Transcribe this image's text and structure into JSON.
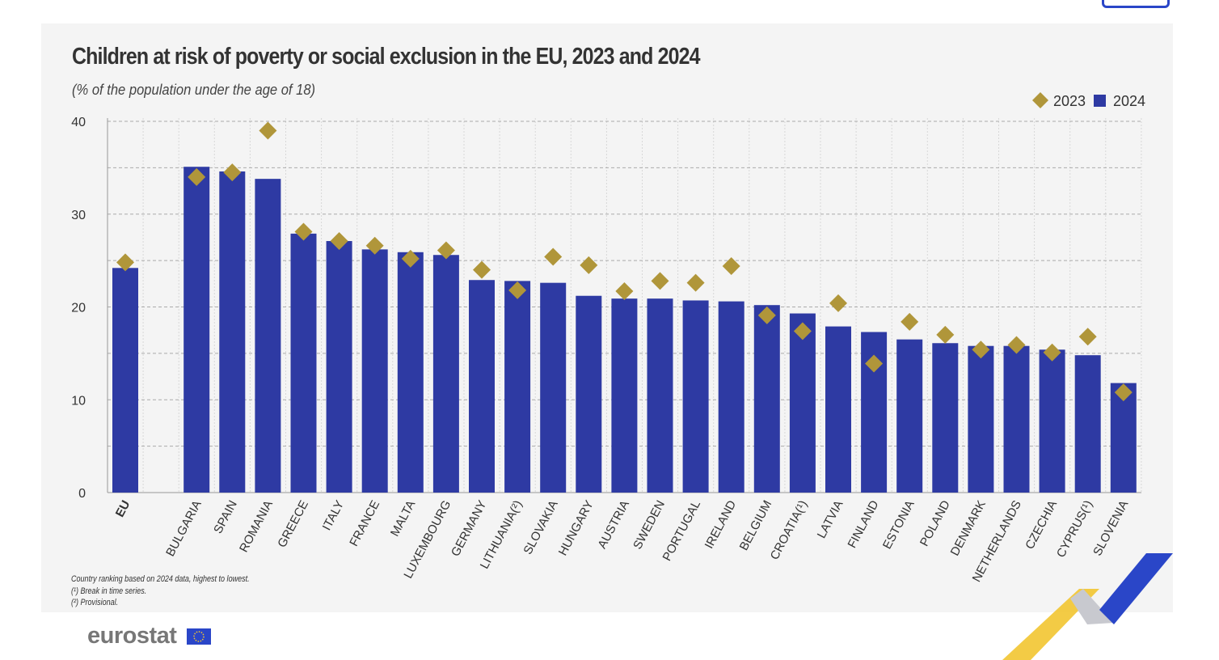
{
  "chart_data": {
    "type": "bar",
    "title": "Children at risk of poverty or social exclusion in the EU, 2023 and 2024",
    "subtitle": "(% of the population under the age of 18)",
    "categories": [
      "EU",
      "BULGARIA",
      "SPAIN",
      "ROMANIA",
      "GREECE",
      "ITALY",
      "FRANCE",
      "MALTA",
      "LUXEMBOURG",
      "GERMANY",
      "LITHUANIA(²)",
      "SLOVAKIA",
      "HUNGARY",
      "AUSTRIA",
      "SWEDEN",
      "PORTUGAL",
      "IRELAND",
      "BELGIUM",
      "CROATIA(¹)",
      "LATVIA",
      "FINLAND",
      "ESTONIA",
      "POLAND",
      "DENMARK",
      "NETHERLANDS",
      "CZECHIA",
      "CYPRUS(¹)",
      "SLOVENIA"
    ],
    "series": [
      {
        "name": "2023",
        "marker": "diamond",
        "color": "#b0963a",
        "values": [
          24.8,
          34.0,
          34.5,
          39.0,
          28.1,
          27.1,
          26.6,
          25.2,
          26.1,
          24.0,
          21.8,
          25.4,
          24.5,
          21.7,
          22.8,
          22.6,
          24.4,
          19.1,
          17.4,
          20.4,
          13.9,
          18.4,
          17.0,
          15.4,
          15.9,
          15.1,
          16.8,
          10.8
        ]
      },
      {
        "name": "2024",
        "marker": "bar",
        "color": "#2e3aa3",
        "values": [
          24.2,
          35.1,
          34.6,
          33.8,
          27.9,
          27.1,
          26.2,
          25.9,
          25.6,
          22.9,
          22.8,
          22.6,
          21.2,
          20.9,
          20.9,
          20.7,
          20.6,
          20.2,
          19.3,
          17.9,
          17.3,
          16.5,
          16.1,
          15.8,
          15.8,
          15.4,
          14.8,
          11.8
        ]
      }
    ],
    "yticks": [
      0,
      10,
      20,
      30,
      40
    ],
    "ylim": [
      0,
      40
    ],
    "grid": "dashed horizontal, dotted vertical",
    "legend": "top-right",
    "xlabel": "",
    "ylabel": ""
  },
  "notes": [
    "Country ranking based on 2024 data, highest to lowest.",
    "(¹) Break in time series.",
    "(²) Provisional."
  ],
  "logo": {
    "text": "eurostat",
    "flag_color": "#2a46c8"
  },
  "colors": {
    "panel": "#f4f4f4",
    "accent_yellow": "#f2c531",
    "accent_blue": "#2a46c8"
  }
}
